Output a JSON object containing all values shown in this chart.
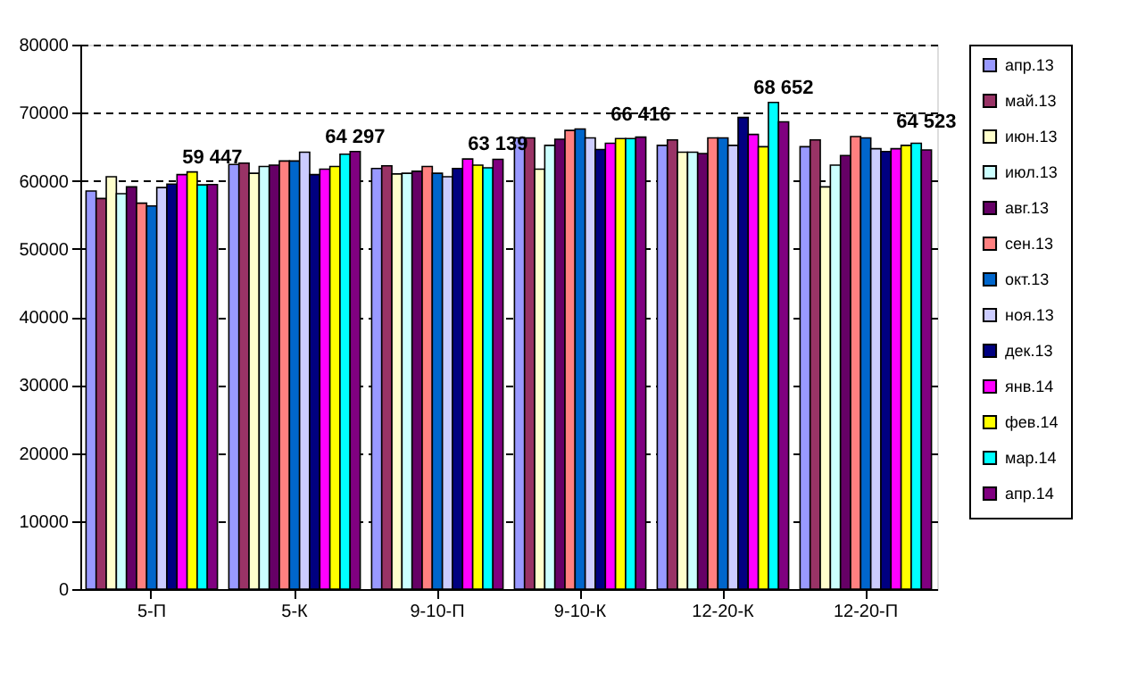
{
  "chart_data": {
    "type": "bar",
    "categories": [
      "5-П",
      "5-К",
      "9-10-П",
      "9-10-К",
      "12-20-К",
      "12-20-П"
    ],
    "ylim": [
      0,
      80000
    ],
    "yticks": [
      0,
      10000,
      20000,
      30000,
      40000,
      50000,
      60000,
      70000,
      80000
    ],
    "grid": "y",
    "legend": "right",
    "series": [
      {
        "name": "апр.13",
        "color": "#9999ff",
        "values": [
          58500,
          62400,
          61800,
          66300,
          65200,
          65000
        ]
      },
      {
        "name": "май.13",
        "color": "#993366",
        "values": [
          57400,
          62600,
          62200,
          66300,
          66000,
          66000
        ]
      },
      {
        "name": "июн.13",
        "color": "#ffffcc",
        "values": [
          60600,
          61100,
          61000,
          61700,
          64200,
          59100
        ]
      },
      {
        "name": "июл.13",
        "color": "#ccffff",
        "values": [
          58100,
          62100,
          61100,
          65200,
          64200,
          62300
        ]
      },
      {
        "name": "авг.13",
        "color": "#660066",
        "values": [
          59100,
          62300,
          61400,
          66100,
          64000,
          63700
        ]
      },
      {
        "name": "сен.13",
        "color": "#ff8080",
        "values": [
          56700,
          62900,
          62100,
          67400,
          66300,
          66500
        ]
      },
      {
        "name": "окт.13",
        "color": "#0066cc",
        "values": [
          56300,
          62900,
          61100,
          67600,
          66300,
          66300
        ]
      },
      {
        "name": "ноя.13",
        "color": "#ccccff",
        "values": [
          59000,
          64200,
          60600,
          66300,
          65200,
          64700
        ]
      },
      {
        "name": "дек.13",
        "color": "#000080",
        "values": [
          59500,
          60900,
          61800,
          64600,
          69300,
          64300
        ]
      },
      {
        "name": "янв.14",
        "color": "#ff00ff",
        "values": [
          60900,
          61700,
          63200,
          65500,
          66800,
          64700
        ]
      },
      {
        "name": "фев.14",
        "color": "#ffff00",
        "values": [
          61300,
          62100,
          62300,
          66200,
          65000,
          65200
        ]
      },
      {
        "name": "мар.14",
        "color": "#00ffff",
        "values": [
          59400,
          63900,
          61900,
          66200,
          71500,
          65500
        ]
      },
      {
        "name": "апр.14",
        "color": "#800080",
        "values": [
          59447,
          64297,
          63139,
          66416,
          68652,
          64523
        ],
        "value_labels": [
          "59 447",
          "64 297",
          "63 139",
          "66 416",
          "68 652",
          "64 523"
        ]
      }
    ]
  }
}
